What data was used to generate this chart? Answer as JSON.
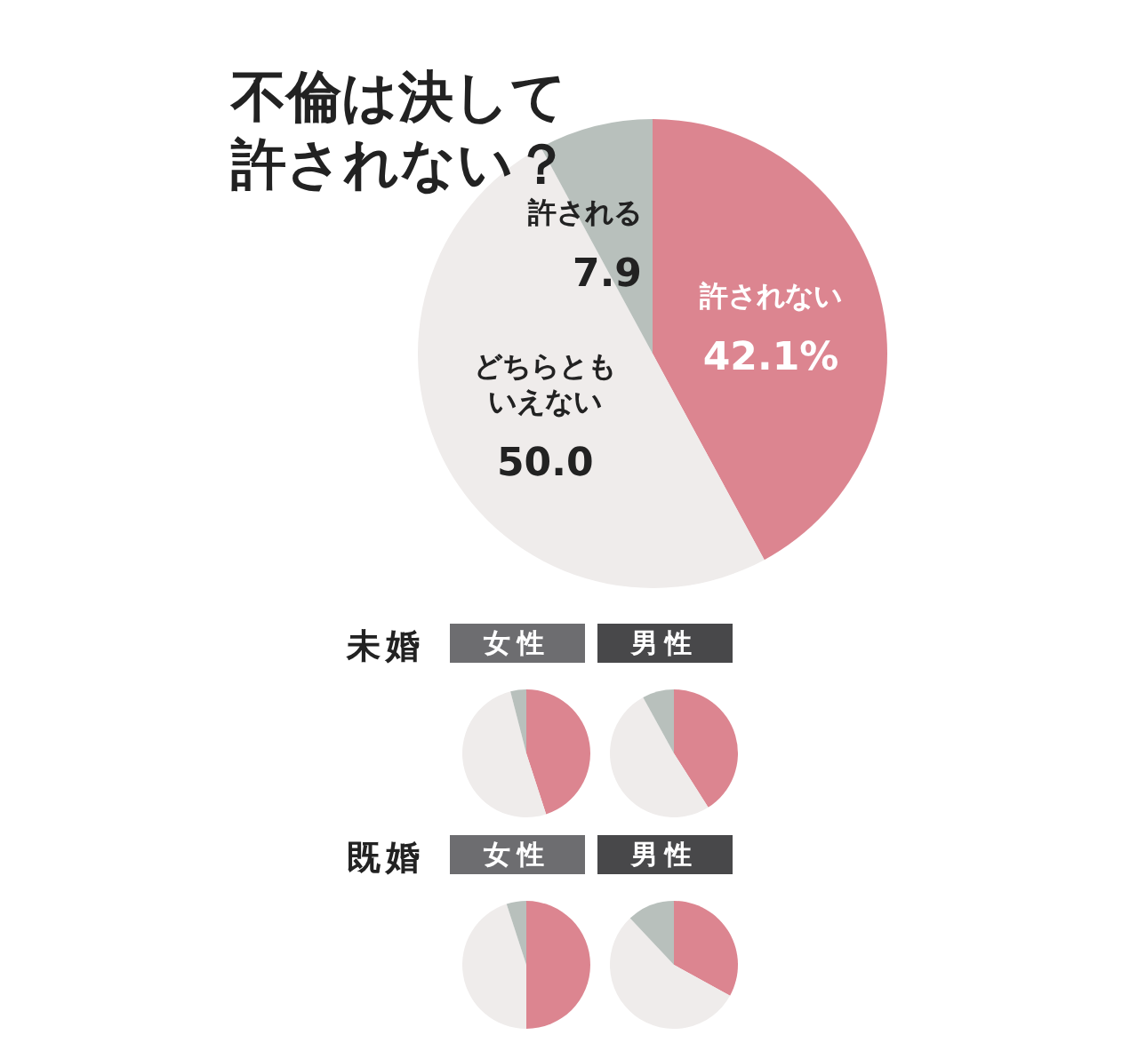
{
  "chart_data": [
    {
      "type": "pie",
      "title": "不倫は決して許されない？",
      "categories": [
        "許されない",
        "どちらともいえない",
        "許される"
      ],
      "values": [
        42.1,
        50.0,
        7.9
      ],
      "value_labels": [
        "42.1%",
        "50.0",
        "7.9"
      ],
      "colors": [
        "#dc8590",
        "#efeceb",
        "#b8c0bc"
      ]
    },
    {
      "type": "pie",
      "title": "女性",
      "annotations": [
        "未婚"
      ],
      "categories": [
        null,
        null,
        null
      ],
      "values": [
        45,
        51,
        4
      ],
      "colors": [
        "#dc8590",
        "#efeceb",
        "#b8c0bc"
      ]
    },
    {
      "type": "pie",
      "title": "男性",
      "categories": [
        null,
        null,
        null
      ],
      "values": [
        41,
        51,
        8
      ],
      "colors": [
        "#dc8590",
        "#efeceb",
        "#b8c0bc"
      ]
    },
    {
      "type": "pie",
      "title": "女性",
      "annotations": [
        "既婚"
      ],
      "categories": [
        null,
        null,
        null
      ],
      "values": [
        50,
        45,
        5
      ],
      "colors": [
        "#dc8590",
        "#efeceb",
        "#b8c0bc"
      ]
    },
    {
      "type": "pie",
      "title": "男性",
      "categories": [
        null,
        null,
        null
      ],
      "values": [
        33,
        55,
        12
      ],
      "colors": [
        "#dc8590",
        "#efeceb",
        "#b8c0bc"
      ]
    }
  ]
}
